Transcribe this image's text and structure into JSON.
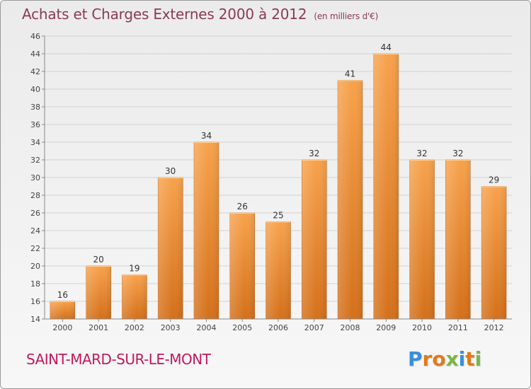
{
  "header": {
    "title": "Achats et Charges Externes 2000 à 2012",
    "subtitle": "(en milliers d'€)"
  },
  "footer": {
    "commune": "SAINT-MARD-SUR-LE-MONT",
    "logo_letters": [
      {
        "ch": "P",
        "color": "#3a8fd8"
      },
      {
        "ch": "r",
        "color": "#e07a1a"
      },
      {
        "ch": "o",
        "color": "#e07a1a"
      },
      {
        "ch": "x",
        "color": "#7ab648"
      },
      {
        "ch": "i",
        "color": "#3a8fd8"
      },
      {
        "ch": "t",
        "color": "#e07a1a"
      },
      {
        "ch": "i",
        "color": "#7ab648"
      }
    ]
  },
  "chart_data": {
    "type": "bar",
    "categories": [
      "2000",
      "2001",
      "2002",
      "2003",
      "2004",
      "2005",
      "2006",
      "2007",
      "2008",
      "2009",
      "2010",
      "2011",
      "2012"
    ],
    "values": [
      16,
      20,
      19,
      30,
      34,
      26,
      25,
      32,
      41,
      44,
      32,
      32,
      29
    ],
    "ylim": [
      14,
      46
    ],
    "yticks": [
      14,
      16,
      18,
      20,
      22,
      24,
      26,
      28,
      30,
      32,
      34,
      36,
      38,
      40,
      42,
      44,
      46
    ],
    "grid": true,
    "bar_color_top": "#f7a24c",
    "bar_color_bottom": "#d4701a"
  }
}
